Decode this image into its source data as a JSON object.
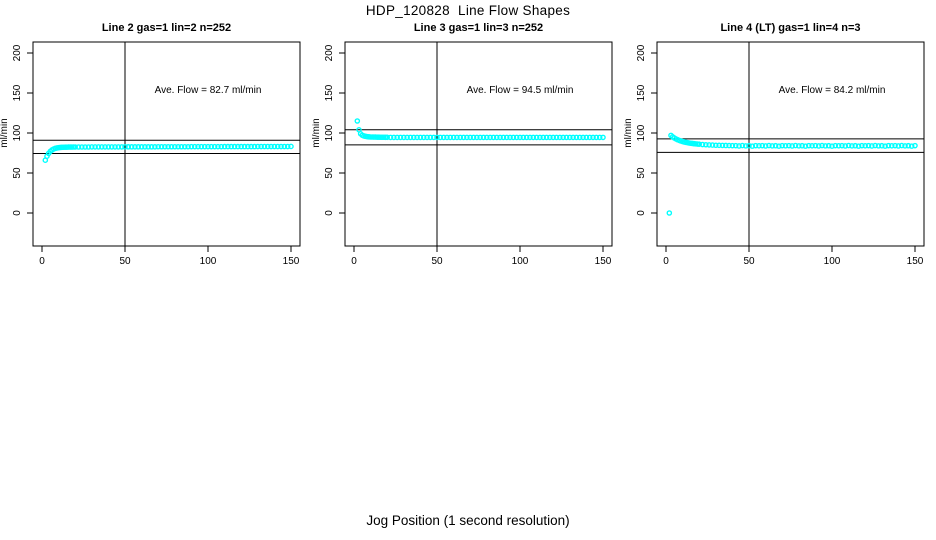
{
  "page": {
    "title": "HDP_120828  Line Flow Shapes",
    "xlabel": "Jog Position (1 second resolution)"
  },
  "chart_data": [
    {
      "type": "scatter",
      "title": "Line 2 gas=1 lin=2 n=252",
      "annotation": "Ave. Flow =  82.7  ml/min",
      "ave_flow": 82.7,
      "ylabel": "ml/min",
      "point_color": "#00FFFF",
      "x_ticks": [
        0,
        50,
        100,
        150
      ],
      "y_ticks": [
        0,
        50,
        100,
        150,
        200
      ],
      "xlim": [
        0,
        150
      ],
      "ylim": [
        0,
        200
      ],
      "vline_x": 50,
      "ref_line_upper": 91.0,
      "ref_line_lower": 74.4,
      "points": [
        [
          2,
          66
        ],
        [
          3,
          71
        ],
        [
          4,
          74.5
        ],
        [
          5,
          77
        ],
        [
          6,
          78.8
        ],
        [
          7,
          80
        ],
        [
          8,
          80.8
        ],
        [
          9,
          81.3
        ],
        [
          10,
          81.7
        ],
        [
          11,
          81.9
        ],
        [
          12,
          82.1
        ],
        [
          13,
          82.2
        ],
        [
          14,
          82.3
        ],
        [
          15,
          82.3
        ],
        [
          16,
          82.4
        ],
        [
          17,
          82.4
        ],
        [
          18,
          82.4
        ],
        [
          19,
          82.5
        ],
        [
          20,
          82.5
        ],
        [
          22,
          82.5
        ],
        [
          24,
          82.5
        ],
        [
          26,
          82.5
        ],
        [
          28,
          82.5
        ],
        [
          30,
          82.6
        ],
        [
          32,
          82.6
        ],
        [
          34,
          82.6
        ],
        [
          36,
          82.6
        ],
        [
          38,
          82.6
        ],
        [
          40,
          82.6
        ],
        [
          42,
          82.6
        ],
        [
          44,
          82.6
        ],
        [
          46,
          82.6
        ],
        [
          48,
          82.6
        ],
        [
          50,
          82.7
        ],
        [
          52,
          82.7
        ],
        [
          54,
          82.7
        ],
        [
          56,
          82.7
        ],
        [
          58,
          82.7
        ],
        [
          60,
          82.7
        ],
        [
          62,
          82.7
        ],
        [
          64,
          82.7
        ],
        [
          66,
          82.7
        ],
        [
          68,
          82.7
        ],
        [
          70,
          82.8
        ],
        [
          72,
          82.8
        ],
        [
          74,
          82.8
        ],
        [
          76,
          82.8
        ],
        [
          78,
          82.8
        ],
        [
          80,
          82.8
        ],
        [
          82,
          82.8
        ],
        [
          84,
          82.8
        ],
        [
          86,
          82.8
        ],
        [
          88,
          82.8
        ],
        [
          90,
          82.9
        ],
        [
          92,
          82.9
        ],
        [
          94,
          82.9
        ],
        [
          96,
          82.9
        ],
        [
          98,
          82.9
        ],
        [
          100,
          82.9
        ],
        [
          102,
          82.9
        ],
        [
          104,
          82.9
        ],
        [
          106,
          82.9
        ],
        [
          108,
          82.9
        ],
        [
          110,
          83
        ],
        [
          112,
          83
        ],
        [
          114,
          83
        ],
        [
          116,
          83
        ],
        [
          118,
          83
        ],
        [
          120,
          83
        ],
        [
          122,
          83
        ],
        [
          124,
          83
        ],
        [
          126,
          83
        ],
        [
          128,
          83
        ],
        [
          130,
          83.1
        ],
        [
          132,
          83.1
        ],
        [
          134,
          83.1
        ],
        [
          136,
          83.1
        ],
        [
          138,
          83.1
        ],
        [
          140,
          83.1
        ],
        [
          142,
          83.1
        ],
        [
          144,
          83.1
        ],
        [
          146,
          83.1
        ],
        [
          148,
          83.1
        ],
        [
          150,
          83.2
        ]
      ]
    },
    {
      "type": "scatter",
      "title": "Line 3 gas=1 lin=3 n=252",
      "annotation": "Ave. Flow =  94.5  ml/min",
      "ave_flow": 94.5,
      "ylabel": "ml/min",
      "point_color": "#00FFFF",
      "x_ticks": [
        0,
        50,
        100,
        150
      ],
      "y_ticks": [
        0,
        50,
        100,
        150,
        200
      ],
      "xlim": [
        0,
        150
      ],
      "ylim": [
        0,
        200
      ],
      "vline_x": 50,
      "ref_line_upper": 104.0,
      "ref_line_lower": 85.1,
      "points": [
        [
          2,
          115
        ],
        [
          3,
          104
        ],
        [
          4,
          99
        ],
        [
          5,
          97.2
        ],
        [
          6,
          96.3
        ],
        [
          7,
          95.8
        ],
        [
          8,
          95.4
        ],
        [
          9,
          95.2
        ],
        [
          10,
          95
        ],
        [
          11,
          95
        ],
        [
          12,
          94.9
        ],
        [
          13,
          94.9
        ],
        [
          14,
          94.8
        ],
        [
          15,
          94.8
        ],
        [
          16,
          94.7
        ],
        [
          17,
          94.7
        ],
        [
          18,
          94.7
        ],
        [
          19,
          94.6
        ],
        [
          20,
          94.6
        ],
        [
          22,
          94.5
        ],
        [
          24,
          94.5
        ],
        [
          26,
          94.5
        ],
        [
          28,
          94.5
        ],
        [
          30,
          94.5
        ],
        [
          32,
          94.5
        ],
        [
          34,
          94.5
        ],
        [
          36,
          94.5
        ],
        [
          38,
          94.5
        ],
        [
          40,
          94.5
        ],
        [
          42,
          94.5
        ],
        [
          44,
          94.5
        ],
        [
          46,
          94.5
        ],
        [
          48,
          94.5
        ],
        [
          50,
          94.5
        ],
        [
          52,
          94.5
        ],
        [
          54,
          94.5
        ],
        [
          56,
          94.5
        ],
        [
          58,
          94.5
        ],
        [
          60,
          94.5
        ],
        [
          62,
          94.5
        ],
        [
          64,
          94.5
        ],
        [
          66,
          94.5
        ],
        [
          68,
          94.5
        ],
        [
          70,
          94.5
        ],
        [
          72,
          94.5
        ],
        [
          74,
          94.5
        ],
        [
          76,
          94.5
        ],
        [
          78,
          94.5
        ],
        [
          80,
          94.5
        ],
        [
          82,
          94.5
        ],
        [
          84,
          94.5
        ],
        [
          86,
          94.5
        ],
        [
          88,
          94.5
        ],
        [
          90,
          94.5
        ],
        [
          92,
          94.5
        ],
        [
          94,
          94.5
        ],
        [
          96,
          94.5
        ],
        [
          98,
          94.5
        ],
        [
          100,
          94.5
        ],
        [
          102,
          94.5
        ],
        [
          104,
          94.5
        ],
        [
          106,
          94.5
        ],
        [
          108,
          94.5
        ],
        [
          110,
          94.5
        ],
        [
          112,
          94.5
        ],
        [
          114,
          94.5
        ],
        [
          116,
          94.5
        ],
        [
          118,
          94.5
        ],
        [
          120,
          94.5
        ],
        [
          122,
          94.5
        ],
        [
          124,
          94.5
        ],
        [
          126,
          94.5
        ],
        [
          128,
          94.5
        ],
        [
          130,
          94.5
        ],
        [
          132,
          94.5
        ],
        [
          134,
          94.5
        ],
        [
          136,
          94.5
        ],
        [
          138,
          94.5
        ],
        [
          140,
          94.5
        ],
        [
          142,
          94.5
        ],
        [
          144,
          94.5
        ],
        [
          146,
          94.5
        ],
        [
          148,
          94.5
        ],
        [
          150,
          94.5
        ]
      ]
    },
    {
      "type": "scatter",
      "title": "Line 4 (LT) gas=1 lin=4 n=3",
      "annotation": "Ave. Flow =  84.2  ml/min",
      "ave_flow": 84.2,
      "ylabel": "ml/min",
      "point_color": "#00FFFF",
      "x_ticks": [
        0,
        50,
        100,
        150
      ],
      "y_ticks": [
        0,
        50,
        100,
        150,
        200
      ],
      "xlim": [
        0,
        150
      ],
      "ylim": [
        0,
        200
      ],
      "vline_x": 50,
      "ref_line_upper": 92.6,
      "ref_line_lower": 75.8,
      "points": [
        [
          2,
          0
        ],
        [
          3,
          97
        ],
        [
          4,
          95.2
        ],
        [
          5,
          93.8
        ],
        [
          6,
          92.6
        ],
        [
          7,
          91.6
        ],
        [
          8,
          90.7
        ],
        [
          9,
          90
        ],
        [
          10,
          89.3
        ],
        [
          11,
          88.8
        ],
        [
          12,
          88.3
        ],
        [
          13,
          87.9
        ],
        [
          14,
          87.5
        ],
        [
          15,
          87.2
        ],
        [
          16,
          86.9
        ],
        [
          17,
          86.6
        ],
        [
          18,
          86.4
        ],
        [
          19,
          86.2
        ],
        [
          20,
          86
        ],
        [
          22,
          85.6
        ],
        [
          24,
          85.3
        ],
        [
          26,
          85.1
        ],
        [
          28,
          84.9
        ],
        [
          30,
          84.7
        ],
        [
          32,
          84.6
        ],
        [
          34,
          84.5
        ],
        [
          36,
          84.4
        ],
        [
          38,
          84.3
        ],
        [
          40,
          84.2
        ],
        [
          42,
          84.2
        ],
        [
          44,
          83.8
        ],
        [
          46,
          84.3
        ],
        [
          48,
          83.9
        ],
        [
          50,
          84.1
        ],
        [
          52,
          83.6
        ],
        [
          54,
          84.2
        ],
        [
          56,
          84
        ],
        [
          58,
          84.2
        ],
        [
          60,
          83.8
        ],
        [
          62,
          84.3
        ],
        [
          64,
          83.9
        ],
        [
          66,
          84.1
        ],
        [
          68,
          83.6
        ],
        [
          70,
          84.2
        ],
        [
          72,
          84
        ],
        [
          74,
          84.2
        ],
        [
          76,
          83.8
        ],
        [
          78,
          84.3
        ],
        [
          80,
          83.9
        ],
        [
          82,
          84.1
        ],
        [
          84,
          83.6
        ],
        [
          86,
          84.2
        ],
        [
          88,
          84
        ],
        [
          90,
          84.2
        ],
        [
          92,
          83.8
        ],
        [
          94,
          84.3
        ],
        [
          96,
          83.9
        ],
        [
          98,
          84.1
        ],
        [
          100,
          83.6
        ],
        [
          102,
          84.2
        ],
        [
          104,
          84
        ],
        [
          106,
          84.2
        ],
        [
          108,
          83.8
        ],
        [
          110,
          84.3
        ],
        [
          112,
          83.9
        ],
        [
          114,
          84.1
        ],
        [
          116,
          83.6
        ],
        [
          118,
          84.2
        ],
        [
          120,
          84
        ],
        [
          122,
          84.2
        ],
        [
          124,
          83.8
        ],
        [
          126,
          84.3
        ],
        [
          128,
          83.9
        ],
        [
          130,
          84.1
        ],
        [
          132,
          83.6
        ],
        [
          134,
          84.2
        ],
        [
          136,
          84
        ],
        [
          138,
          84.2
        ],
        [
          140,
          83.8
        ],
        [
          142,
          84.3
        ],
        [
          144,
          83.9
        ],
        [
          146,
          84.1
        ],
        [
          148,
          83.6
        ],
        [
          150,
          84.2
        ]
      ]
    }
  ]
}
